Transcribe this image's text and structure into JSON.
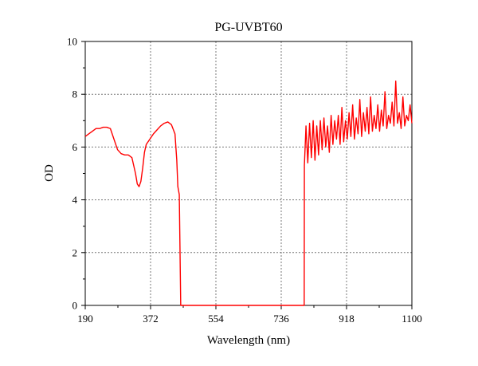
{
  "chart_data": {
    "type": "line",
    "title": "PG-UVBT60",
    "xlabel": "Wavelength (nm)",
    "ylabel": "OD",
    "xlim": [
      190,
      1100
    ],
    "ylim": [
      0,
      10
    ],
    "xticks": [
      190,
      372,
      554,
      736,
      918,
      1100
    ],
    "yticks": [
      0,
      2,
      4,
      6,
      8,
      10
    ],
    "grid": true,
    "series_color": "#ff0000",
    "series": [
      {
        "x": [
          190,
          200,
          210,
          220,
          230,
          240,
          250,
          260,
          270,
          280,
          290,
          300,
          310,
          320,
          330,
          335,
          340,
          345,
          350,
          355,
          360,
          370,
          380,
          390,
          400,
          410,
          420,
          430,
          440,
          445,
          448,
          452,
          456,
          456.5,
          500,
          554,
          600,
          650,
          700,
          736,
          780,
          800,
          800.5,
          805,
          810,
          815,
          820,
          825,
          830,
          835,
          840,
          845,
          850,
          855,
          860,
          865,
          870,
          875,
          880,
          885,
          890,
          895,
          900,
          905,
          910,
          915,
          920,
          925,
          930,
          935,
          940,
          945,
          950,
          955,
          960,
          965,
          970,
          975,
          980,
          985,
          990,
          995,
          1000,
          1005,
          1010,
          1015,
          1020,
          1025,
          1030,
          1035,
          1040,
          1045,
          1050,
          1055,
          1060,
          1065,
          1070,
          1075,
          1080,
          1085,
          1090,
          1095,
          1100
        ],
        "y": [
          6.4,
          6.5,
          6.6,
          6.7,
          6.7,
          6.75,
          6.75,
          6.7,
          6.3,
          5.9,
          5.75,
          5.7,
          5.7,
          5.6,
          5.0,
          4.6,
          4.5,
          4.7,
          5.2,
          5.8,
          6.1,
          6.3,
          6.5,
          6.65,
          6.8,
          6.9,
          6.95,
          6.85,
          6.5,
          5.5,
          4.5,
          4.2,
          0.0,
          0.0,
          0.0,
          0.0,
          0.0,
          0.0,
          0.0,
          0.0,
          0.0,
          0.0,
          5.3,
          6.8,
          5.4,
          6.9,
          5.6,
          7.0,
          5.5,
          6.8,
          5.7,
          7.0,
          5.9,
          7.1,
          6.0,
          6.8,
          5.8,
          7.2,
          6.1,
          7.0,
          6.3,
          7.2,
          6.1,
          7.5,
          6.2,
          7.0,
          6.3,
          7.3,
          6.4,
          7.6,
          6.3,
          7.1,
          6.5,
          7.8,
          6.4,
          7.3,
          6.6,
          7.5,
          6.5,
          7.9,
          6.6,
          7.2,
          6.7,
          7.6,
          6.6,
          7.4,
          6.8,
          8.1,
          6.7,
          7.2,
          6.9,
          7.7,
          6.8,
          8.5,
          6.9,
          7.3,
          6.7,
          7.9,
          6.8,
          7.2,
          7.0,
          7.6,
          6.9
        ]
      }
    ]
  }
}
